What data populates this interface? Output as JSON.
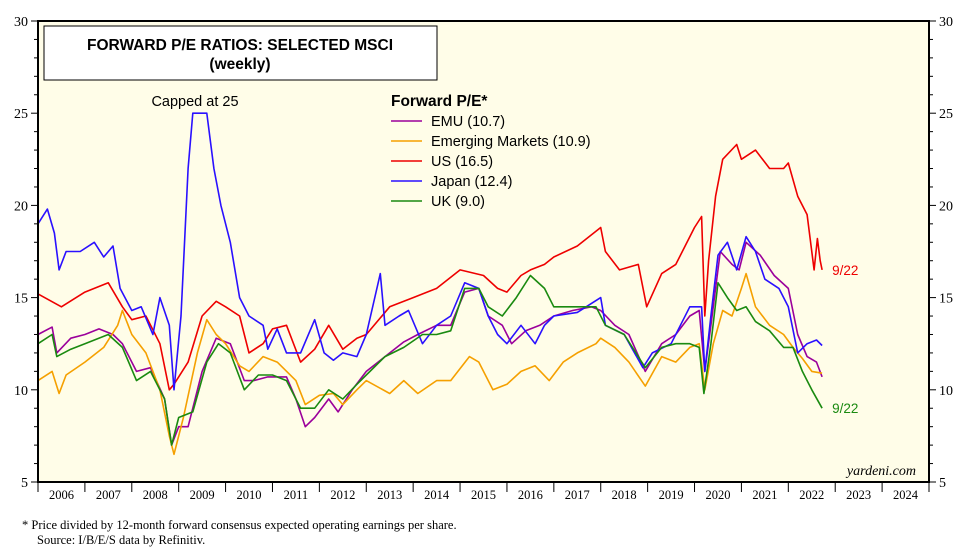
{
  "chart_data": {
    "type": "line",
    "title": "FORWARD P/E RATIOS: SELECTED MSCI",
    "subtitle": "(weekly)",
    "legend_title": "Forward P/E*",
    "legend_placement": "top-center",
    "annotation_cap": "Capped at 25",
    "watermark": "yardeni.com",
    "end_labels": [
      {
        "text": "9/22",
        "series": "US"
      },
      {
        "text": "9/22",
        "series": "UK"
      }
    ],
    "ylim": [
      5,
      30
    ],
    "yticks": [
      5,
      10,
      15,
      20,
      25,
      30
    ],
    "xlim": [
      2006,
      2025
    ],
    "xtick_labels": [
      "2006",
      "2007",
      "2008",
      "2009",
      "2010",
      "2011",
      "2012",
      "2013",
      "2014",
      "2015",
      "2016",
      "2017",
      "2018",
      "2019",
      "2020",
      "2021",
      "2022",
      "2023",
      "2024"
    ],
    "grid": false,
    "series": [
      {
        "name": "EMU",
        "legend": "EMU (10.7)",
        "color": "#9b009b",
        "x": [
          2006,
          2006.3,
          2006.4,
          2006.7,
          2007,
          2007.3,
          2007.6,
          2007.8,
          2008.1,
          2008.4,
          2008.7,
          2008.85,
          2009,
          2009.2,
          2009.5,
          2009.8,
          2010.1,
          2010.4,
          2010.6,
          2010.9,
          2011.3,
          2011.5,
          2011.7,
          2011.9,
          2012.2,
          2012.4,
          2012.7,
          2013,
          2013.4,
          2013.8,
          2014.1,
          2014.5,
          2014.8,
          2015.1,
          2015.4,
          2015.6,
          2015.9,
          2016.1,
          2016.4,
          2016.7,
          2017,
          2017.4,
          2017.8,
          2018,
          2018.3,
          2018.6,
          2018.95,
          2019.3,
          2019.6,
          2019.9,
          2020.1,
          2020.22,
          2020.35,
          2020.55,
          2020.8,
          2020.95,
          2021.1,
          2021.4,
          2021.7,
          2022,
          2022.2,
          2022.4,
          2022.6,
          2022.72
        ],
        "y": [
          13,
          13.4,
          12,
          12.8,
          13,
          13.3,
          13,
          12.5,
          11,
          11.2,
          9.5,
          7,
          8,
          8,
          11,
          12.8,
          12.5,
          10.5,
          10.5,
          10.7,
          10.7,
          9.5,
          8,
          8.5,
          9.5,
          8.8,
          10,
          11,
          11.8,
          12.6,
          13,
          13.5,
          13.5,
          15.3,
          15.5,
          14,
          13.5,
          12.5,
          13.2,
          13.5,
          14,
          14.3,
          14.5,
          14.3,
          13.5,
          13,
          11,
          12.5,
          13,
          14,
          14.3,
          11,
          13.5,
          17.5,
          16.8,
          16.5,
          18,
          17.3,
          16.2,
          15.5,
          13,
          11.8,
          11.5,
          10.7
        ]
      },
      {
        "name": "Emerging Markets",
        "legend": "Emerging Markets (10.9)",
        "color": "#f5a000",
        "x": [
          2006,
          2006.3,
          2006.45,
          2006.6,
          2007,
          2007.4,
          2007.7,
          2007.8,
          2008,
          2008.3,
          2008.6,
          2008.8,
          2008.9,
          2009.1,
          2009.4,
          2009.6,
          2009.8,
          2010,
          2010.3,
          2010.5,
          2010.8,
          2011.1,
          2011.5,
          2011.7,
          2012,
          2012.3,
          2012.5,
          2012.8,
          2013,
          2013.5,
          2013.8,
          2014.1,
          2014.5,
          2014.8,
          2015.2,
          2015.4,
          2015.7,
          2016,
          2016.3,
          2016.6,
          2016.9,
          2017.2,
          2017.5,
          2017.9,
          2018,
          2018.3,
          2018.6,
          2018.95,
          2019.3,
          2019.6,
          2019.9,
          2020.1,
          2020.22,
          2020.4,
          2020.6,
          2020.8,
          2021,
          2021.1,
          2021.3,
          2021.6,
          2021.9,
          2022.1,
          2022.3,
          2022.5,
          2022.72
        ],
        "y": [
          10.5,
          11,
          9.8,
          10.8,
          11.5,
          12.3,
          13.5,
          14.3,
          13,
          12,
          10,
          7.5,
          6.5,
          8.5,
          12,
          13.8,
          13,
          12.5,
          11.3,
          11,
          11.8,
          11.5,
          10.5,
          9.2,
          9.7,
          9.8,
          9.2,
          10,
          10.5,
          9.8,
          10.5,
          9.8,
          10.5,
          10.5,
          11.8,
          11.5,
          10,
          10.3,
          11,
          11.3,
          10.5,
          11.5,
          12,
          12.5,
          12.8,
          12.3,
          11.5,
          10.2,
          11.8,
          11.5,
          12.3,
          12.5,
          10,
          12.5,
          14.3,
          14,
          15.5,
          16.3,
          14.5,
          13.5,
          13,
          12.3,
          11.7,
          11,
          10.9
        ]
      },
      {
        "name": "US",
        "legend": "US (16.5)",
        "color": "#ee0000",
        "x": [
          2006,
          2006.5,
          2007,
          2007.5,
          2007.8,
          2008,
          2008.3,
          2008.6,
          2008.8,
          2008.9,
          2009.2,
          2009.5,
          2009.8,
          2010,
          2010.3,
          2010.5,
          2010.8,
          2011,
          2011.3,
          2011.6,
          2011.9,
          2012.2,
          2012.5,
          2012.8,
          2013,
          2013.5,
          2014,
          2014.5,
          2015,
          2015.5,
          2015.8,
          2016,
          2016.3,
          2016.5,
          2016.8,
          2017,
          2017.5,
          2018,
          2018.1,
          2018.4,
          2018.8,
          2018.98,
          2019.3,
          2019.6,
          2020,
          2020.15,
          2020.22,
          2020.3,
          2020.45,
          2020.6,
          2020.9,
          2021,
          2021.3,
          2021.6,
          2021.9,
          2022,
          2022.2,
          2022.4,
          2022.55,
          2022.62,
          2022.68,
          2022.72
        ],
        "y": [
          15.2,
          14.5,
          15.3,
          15.8,
          14.5,
          13.8,
          14,
          12.5,
          10,
          10.3,
          11.5,
          14,
          14.8,
          14.5,
          14,
          12,
          12.5,
          13.3,
          13.5,
          11.5,
          12.2,
          13.5,
          12.2,
          12.8,
          13,
          14.5,
          15,
          15.5,
          16.5,
          16.2,
          15.5,
          15.3,
          16.2,
          16.5,
          16.8,
          17.2,
          17.8,
          18.8,
          17.5,
          16.5,
          16.8,
          14.5,
          16.3,
          16.8,
          18.8,
          19.4,
          14,
          17,
          20.5,
          22.5,
          23.3,
          22.5,
          23,
          22,
          22,
          22.3,
          20.5,
          19.5,
          16.5,
          18.2,
          17,
          16.5
        ]
      },
      {
        "name": "Japan",
        "legend": "Japan (12.4)",
        "color": "#2a10ff",
        "x": [
          2006,
          2006.2,
          2006.35,
          2006.45,
          2006.6,
          2006.9,
          2007.2,
          2007.4,
          2007.6,
          2007.75,
          2008,
          2008.2,
          2008.45,
          2008.6,
          2008.8,
          2008.9,
          2009.05,
          2009.2,
          2009.3,
          2009.6,
          2009.75,
          2009.9,
          2010.1,
          2010.3,
          2010.5,
          2010.8,
          2010.9,
          2011.1,
          2011.3,
          2011.6,
          2011.9,
          2012.1,
          2012.3,
          2012.5,
          2012.8,
          2013,
          2013.3,
          2013.4,
          2013.7,
          2013.9,
          2014.2,
          2014.5,
          2014.8,
          2015.1,
          2015.4,
          2015.6,
          2015.8,
          2016,
          2016.3,
          2016.6,
          2016.8,
          2017,
          2017.5,
          2018,
          2018.1,
          2018.5,
          2018.9,
          2019.1,
          2019.5,
          2019.9,
          2020.15,
          2020.22,
          2020.35,
          2020.5,
          2020.7,
          2020.9,
          2021.1,
          2021.3,
          2021.5,
          2021.8,
          2022,
          2022.2,
          2022.4,
          2022.6,
          2022.72
        ],
        "y": [
          19,
          19.8,
          18.5,
          16.5,
          17.5,
          17.5,
          18,
          17.2,
          17.8,
          15.5,
          14.3,
          14.5,
          13,
          15,
          13.5,
          10,
          14,
          22,
          25,
          25,
          22,
          20,
          18,
          15,
          14,
          13.5,
          12.2,
          13.3,
          12,
          12,
          13.8,
          12,
          11.6,
          12,
          11.8,
          13,
          16.3,
          13.5,
          14,
          14.3,
          12.5,
          13.5,
          14,
          15.8,
          15.5,
          14,
          13,
          12.5,
          13.5,
          12.5,
          13.5,
          14,
          14.2,
          15,
          13.5,
          13,
          11.2,
          12,
          12.5,
          14.5,
          14.5,
          11,
          14,
          17.3,
          18,
          16.5,
          18.3,
          17.5,
          16,
          15.5,
          14.5,
          12,
          12.5,
          12.7,
          12.4
        ]
      },
      {
        "name": "UK",
        "legend": "UK (9.0)",
        "color": "#1a8a10",
        "x": [
          2006,
          2006.3,
          2006.4,
          2006.7,
          2007,
          2007.5,
          2007.8,
          2008.1,
          2008.4,
          2008.7,
          2008.85,
          2009,
          2009.3,
          2009.6,
          2009.85,
          2010.1,
          2010.4,
          2010.7,
          2011,
          2011.3,
          2011.6,
          2011.9,
          2012.2,
          2012.5,
          2012.8,
          2013,
          2013.4,
          2013.8,
          2014.2,
          2014.5,
          2014.8,
          2015.1,
          2015.4,
          2015.6,
          2015.9,
          2016.2,
          2016.5,
          2016.8,
          2017,
          2017.5,
          2017.9,
          2018.1,
          2018.5,
          2018.95,
          2019.3,
          2019.6,
          2019.9,
          2020.1,
          2020.2,
          2020.35,
          2020.5,
          2020.7,
          2020.9,
          2021.1,
          2021.3,
          2021.6,
          2021.9,
          2022.1,
          2022.3,
          2022.5,
          2022.72
        ],
        "y": [
          12.5,
          13,
          11.8,
          12.2,
          12.5,
          13,
          12.3,
          10.5,
          11,
          9.5,
          7,
          8.5,
          8.8,
          11.5,
          12.5,
          12,
          10,
          10.8,
          10.8,
          10.5,
          9,
          9,
          10,
          9.5,
          10.3,
          10.8,
          11.8,
          12.3,
          13,
          13,
          13.2,
          15.5,
          15.5,
          14.5,
          14,
          15,
          16.2,
          15.5,
          14.5,
          14.5,
          14.5,
          13.5,
          13,
          11.2,
          12.3,
          12.5,
          12.5,
          12.3,
          9.8,
          12.5,
          15.8,
          15,
          14.3,
          14.5,
          13.7,
          13.2,
          12.3,
          12.3,
          11,
          10,
          9.0
        ]
      }
    ]
  },
  "footnote": {
    "line1": "*   Price divided by 12-month forward consensus expected operating earnings per share.",
    "line2": "Source: I/B/E/S data by Refinitiv."
  }
}
